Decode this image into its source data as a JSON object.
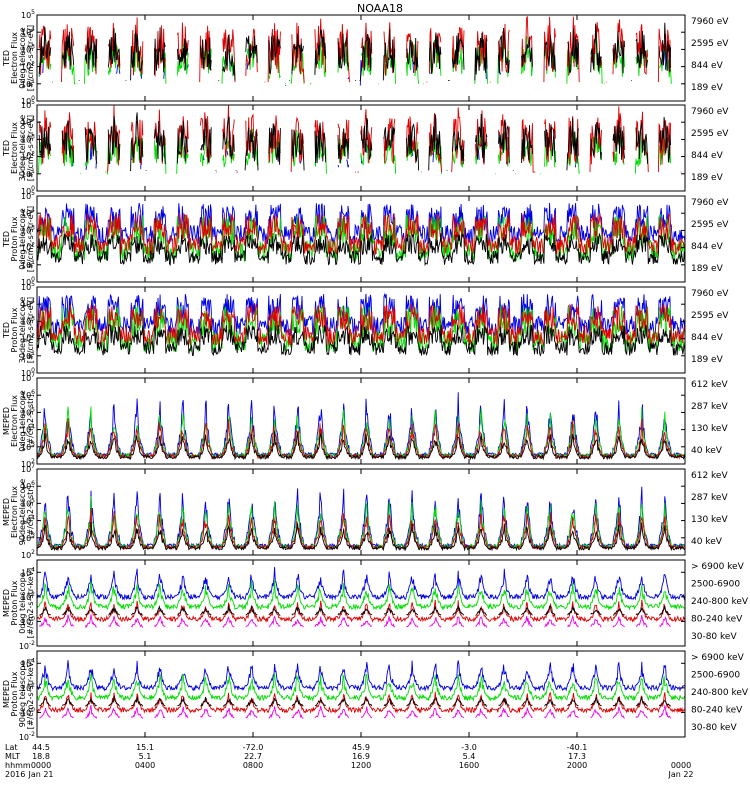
{
  "title": "NOAA18",
  "colors": {
    "black": "#000000",
    "red": "#e00000",
    "green": "#00dd00",
    "blue": "#0000e6",
    "magenta": "#ee00ee"
  },
  "chart_data": {
    "type": "line",
    "xaxis": {
      "row_labels": [
        "Lat",
        "MLT",
        "hhmm",
        "2016"
      ],
      "ticks": [
        {
          "lat": "44.5",
          "mlt": "18.8",
          "hhmm": "0000",
          "date": "Jan 21"
        },
        {
          "lat": "15.1",
          "mlt": "5.1",
          "hhmm": "0400",
          "date": ""
        },
        {
          "lat": "-72.0",
          "mlt": "22.7",
          "hhmm": "0800",
          "date": ""
        },
        {
          "lat": "45.9",
          "mlt": "16.9",
          "hhmm": "1200",
          "date": ""
        },
        {
          "lat": "-3.0",
          "mlt": "5.4",
          "hhmm": "1600",
          "date": ""
        },
        {
          "lat": "-40.1",
          "mlt": "17.3",
          "hhmm": "2000",
          "date": ""
        },
        {
          "lat": "",
          "mlt": "",
          "hhmm": "0000",
          "date": "Jan 22"
        }
      ],
      "range_hours": [
        0,
        24
      ]
    },
    "panels": [
      {
        "ylabel": [
          "TED",
          "Electron Flux",
          "0deg telescope",
          "[#/cm2-s-str-eV]"
        ],
        "ymin_exp": 0,
        "ymax_exp": 5,
        "ticks_exp": [
          0,
          1,
          2,
          3,
          4,
          5
        ],
        "legend": [
          {
            "text": "7960 eV",
            "color": "#000000"
          },
          {
            "text": "2595 eV",
            "color": "#e00000"
          },
          {
            "text": "844 eV",
            "color": "#00dd00"
          },
          {
            "text": "189 eV",
            "color": "#0000e6"
          }
        ]
      },
      {
        "ylabel": [
          "TED",
          "Electron Flux",
          "30deg telescope",
          "[#/cm2-s-str-eV]"
        ],
        "ymin_exp": 0,
        "ymax_exp": 5,
        "ticks_exp": [
          0,
          1,
          2,
          3,
          4,
          5
        ],
        "legend": [
          {
            "text": "7960 eV",
            "color": "#000000"
          },
          {
            "text": "2595 eV",
            "color": "#e00000"
          },
          {
            "text": "844 eV",
            "color": "#00dd00"
          },
          {
            "text": "189 eV",
            "color": "#0000e6"
          }
        ]
      },
      {
        "ylabel": [
          "TED",
          "Proton Flux",
          "0deg telescope",
          "[#/cm2-s-str-eV]"
        ],
        "ymin_exp": 0,
        "ymax_exp": 5,
        "ticks_exp": [
          0,
          1,
          2,
          3,
          4,
          5
        ],
        "legend": [
          {
            "text": "7960 eV",
            "color": "#000000"
          },
          {
            "text": "2595 eV",
            "color": "#e00000"
          },
          {
            "text": "844 eV",
            "color": "#00dd00"
          },
          {
            "text": "189 eV",
            "color": "#0000e6"
          }
        ]
      },
      {
        "ylabel": [
          "TED",
          "Proton Flux",
          "30deg telescope",
          "[#/cm2-s-str-eV]"
        ],
        "ymin_exp": 0,
        "ymax_exp": 5,
        "ticks_exp": [
          0,
          1,
          2,
          3,
          4,
          5
        ],
        "legend": [
          {
            "text": "7960 eV",
            "color": "#000000"
          },
          {
            "text": "2595 eV",
            "color": "#e00000"
          },
          {
            "text": "844 eV",
            "color": "#00dd00"
          },
          {
            "text": "189 eV",
            "color": "#0000e6"
          }
        ]
      },
      {
        "ylabel": [
          "MEPED",
          "Electron Flux",
          "0deg telescope",
          "[#/cm2-s-str]"
        ],
        "ymin_exp": 2,
        "ymax_exp": 7,
        "ticks_exp": [
          2,
          3,
          4,
          5,
          6,
          7
        ],
        "legend": [
          {
            "text": "612 keV",
            "color": "#000000"
          },
          {
            "text": "287 keV",
            "color": "#e00000"
          },
          {
            "text": "130 keV",
            "color": "#00dd00"
          },
          {
            "text": "40 keV",
            "color": "#0000e6"
          }
        ]
      },
      {
        "ylabel": [
          "MEPED",
          "Electron Flux",
          "90deg telescope",
          "[#/cm2-s-str]"
        ],
        "ymin_exp": 2,
        "ymax_exp": 7,
        "ticks_exp": [
          2,
          3,
          4,
          5,
          6,
          7
        ],
        "legend": [
          {
            "text": "612 keV",
            "color": "#000000"
          },
          {
            "text": "287 keV",
            "color": "#e00000"
          },
          {
            "text": "130 keV",
            "color": "#00dd00"
          },
          {
            "text": "40 keV",
            "color": "#0000e6"
          }
        ]
      },
      {
        "ylabel": [
          "MEPED",
          "Proton Flux",
          "0deg telescope",
          "[#/cm2-s-str-keV]"
        ],
        "ymin_exp": -2,
        "ymax_exp": 5,
        "ticks_exp": [
          -2,
          0,
          2,
          4
        ],
        "legend": [
          {
            "text": "> 6900 keV",
            "color": "#ee00ee"
          },
          {
            "text": "2500-6900",
            "color": "#000000"
          },
          {
            "text": "240-800 keV",
            "color": "#e00000"
          },
          {
            "text": "80-240 keV",
            "color": "#00dd00"
          },
          {
            "text": "30-80 keV",
            "color": "#0000e6"
          }
        ]
      },
      {
        "ylabel": [
          "MEPED",
          "Proton Flux",
          "90deg telescope",
          "[#/cm2-s-str-keV]"
        ],
        "ymin_exp": -2,
        "ymax_exp": 5,
        "ticks_exp": [
          -2,
          0,
          2,
          4
        ],
        "legend": [
          {
            "text": "> 6900 keV",
            "color": "#ee00ee"
          },
          {
            "text": "2500-6900",
            "color": "#000000"
          },
          {
            "text": "240-800 keV",
            "color": "#e00000"
          },
          {
            "text": "80-240 keV",
            "color": "#00dd00"
          },
          {
            "text": "30-80 keV",
            "color": "#0000e6"
          }
        ]
      }
    ]
  }
}
